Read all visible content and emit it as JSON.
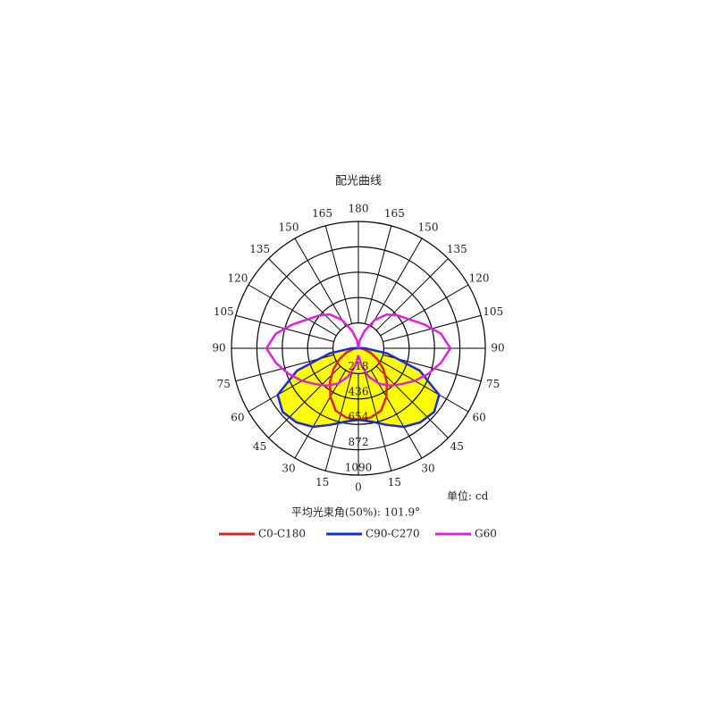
{
  "chart_data": {
    "type": "polar",
    "title": "配光曲线",
    "unit_note": "单位: cd",
    "beam_angle_note": "平均光束角(50%): 101.9°",
    "angles": [
      0,
      10,
      20,
      30,
      40,
      50,
      60,
      70,
      80,
      90,
      100,
      110,
      120,
      130,
      140,
      150,
      160,
      170,
      180
    ],
    "angle_ticks": [
      0,
      15,
      30,
      45,
      60,
      75,
      90,
      105,
      120,
      135,
      150,
      165,
      180
    ],
    "rlim": [
      0,
      1090
    ],
    "rticks": [
      218,
      436,
      654,
      872,
      1090
    ],
    "series": [
      {
        "name": "C0-C180",
        "color": "#e02020",
        "values": [
          615,
          605,
          570,
          480,
          380,
          280,
          190,
          110,
          50,
          20,
          5,
          0,
          0,
          0,
          0,
          0,
          0,
          0,
          0
        ]
      },
      {
        "name": "C90-C270",
        "color": "#1a2bd0",
        "fill": "#ffff00",
        "values": [
          615,
          640,
          700,
          780,
          830,
          850,
          800,
          560,
          250,
          60,
          10,
          0,
          0,
          0,
          0,
          0,
          0,
          0,
          0
        ]
      },
      {
        "name": "G60",
        "color": "#e020e0",
        "values": [
          60,
          150,
          260,
          350,
          420,
          480,
          560,
          640,
          720,
          790,
          720,
          600,
          500,
          440,
          380,
          280,
          160,
          70,
          0
        ]
      }
    ]
  }
}
